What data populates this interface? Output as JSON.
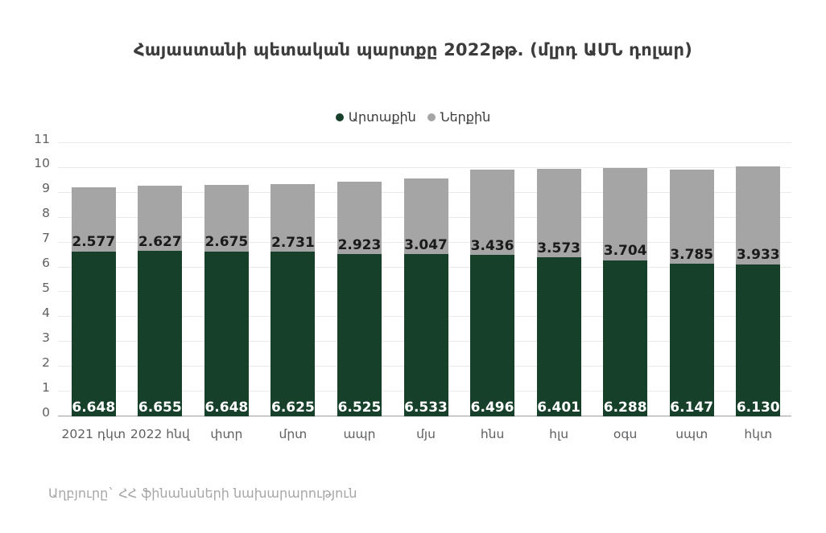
{
  "chart_data": {
    "type": "bar",
    "stacked": true,
    "title": "Հայաստանի պետական պարտքը 2022թթ. (մլրդ ԱՄՆ դոլար)",
    "categories": [
      "2021 դկտ",
      "2022 հնվ",
      "փտր",
      "մրտ",
      "ապր",
      "մյս",
      "հնս",
      "հլս",
      "օգս",
      "սպտ",
      "հկտ"
    ],
    "series": [
      {
        "name": "Արտաքին",
        "color": "#17402a",
        "label_color": "#ffffff",
        "values": [
          6.648,
          6.655,
          6.648,
          6.625,
          6.525,
          6.533,
          6.496,
          6.401,
          6.288,
          6.147,
          6.13
        ]
      },
      {
        "name": "Ներքին",
        "color": "#a5a5a5",
        "label_color": "#1a1a1a",
        "values": [
          2.577,
          2.627,
          2.675,
          2.731,
          2.923,
          3.047,
          3.436,
          3.573,
          3.704,
          3.785,
          3.933
        ]
      }
    ],
    "ylim": [
      0,
      11
    ],
    "ytick_step": 1,
    "grid": true,
    "legend_position": "top",
    "value_label_decimals": 3
  },
  "source_note": "Աղբյուրը` ՀՀ ֆինանսների նախարարություն"
}
